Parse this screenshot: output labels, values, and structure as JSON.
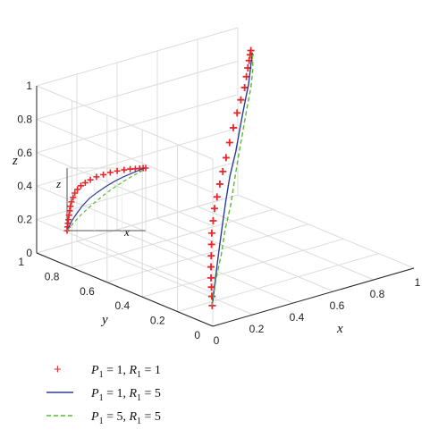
{
  "chart_data": {
    "type": "line3d",
    "title": "",
    "xlabel": "x",
    "ylabel": "y",
    "zlabel": "z",
    "xlim": [
      0,
      1
    ],
    "ylim": [
      0,
      1
    ],
    "zlim": [
      0,
      1
    ],
    "x_ticks": [
      "0",
      "0.2",
      "0.4",
      "0.6",
      "0.8",
      "1"
    ],
    "y_ticks": [
      "0",
      "0.2",
      "0.4",
      "0.6",
      "0.8",
      "1"
    ],
    "z_ticks": [
      "0",
      "0.2",
      "0.4",
      "0.6",
      "0.8",
      "1"
    ],
    "grid": true,
    "legend_position": "bottom-left",
    "inset": {
      "xlabel": "x",
      "zlabel": "z"
    },
    "series": [
      {
        "legend": "P1 = 1, R1 = 1",
        "legend_parts": {
          "p": "P",
          "p_sub": "1",
          "p_val": " = 1, ",
          "r": "R",
          "r_sub": "1",
          "r_val": " = 1"
        },
        "style": "plus-markers",
        "color": "#e8262b",
        "points": [
          [
            0.05,
            0.06,
            0.08
          ],
          [
            0.055,
            0.068,
            0.13
          ],
          [
            0.06,
            0.076,
            0.18
          ],
          [
            0.065,
            0.084,
            0.23
          ],
          [
            0.072,
            0.092,
            0.29
          ],
          [
            0.08,
            0.1,
            0.35
          ],
          [
            0.09,
            0.11,
            0.41
          ],
          [
            0.1,
            0.12,
            0.47
          ],
          [
            0.12,
            0.135,
            0.53
          ],
          [
            0.14,
            0.15,
            0.59
          ],
          [
            0.17,
            0.17,
            0.64
          ],
          [
            0.21,
            0.2,
            0.69
          ],
          [
            0.26,
            0.24,
            0.73
          ],
          [
            0.32,
            0.29,
            0.77
          ],
          [
            0.39,
            0.35,
            0.81
          ],
          [
            0.47,
            0.42,
            0.84
          ],
          [
            0.55,
            0.49,
            0.87
          ],
          [
            0.63,
            0.56,
            0.89
          ],
          [
            0.71,
            0.63,
            0.905
          ],
          [
            0.78,
            0.7,
            0.915
          ],
          [
            0.84,
            0.76,
            0.92
          ],
          [
            0.89,
            0.81,
            0.925
          ],
          [
            0.93,
            0.85,
            0.928
          ],
          [
            0.96,
            0.88,
            0.93
          ]
        ]
      },
      {
        "legend": "P1 = 1, R1 = 5",
        "legend_parts": {
          "p": "P",
          "p_sub": "1",
          "p_val": " = 1, ",
          "r": "R",
          "r_sub": "1",
          "r_val": " = 5"
        },
        "style": "solid",
        "color": "#2b3b9a",
        "points": [
          [
            0.05,
            0.06,
            0.08
          ],
          [
            0.1,
            0.1,
            0.2
          ],
          [
            0.16,
            0.15,
            0.31
          ],
          [
            0.23,
            0.21,
            0.42
          ],
          [
            0.31,
            0.28,
            0.52
          ],
          [
            0.4,
            0.36,
            0.6
          ],
          [
            0.5,
            0.44,
            0.68
          ],
          [
            0.6,
            0.53,
            0.75
          ],
          [
            0.7,
            0.62,
            0.81
          ],
          [
            0.8,
            0.71,
            0.86
          ],
          [
            0.88,
            0.79,
            0.9
          ],
          [
            0.95,
            0.86,
            0.93
          ]
        ]
      },
      {
        "legend": "P1 = 5, R1 = 5",
        "legend_parts": {
          "p": "P",
          "p_sub": "1",
          "p_val": " = 5, ",
          "r": "R",
          "r_sub": "1",
          "r_val": " = 5"
        },
        "style": "dashed",
        "color": "#5cb83a",
        "points": [
          [
            0.05,
            0.06,
            0.08
          ],
          [
            0.12,
            0.12,
            0.18
          ],
          [
            0.2,
            0.18,
            0.28
          ],
          [
            0.28,
            0.25,
            0.37
          ],
          [
            0.37,
            0.32,
            0.46
          ],
          [
            0.46,
            0.4,
            0.55
          ],
          [
            0.55,
            0.48,
            0.63
          ],
          [
            0.64,
            0.56,
            0.7
          ],
          [
            0.73,
            0.64,
            0.77
          ],
          [
            0.82,
            0.72,
            0.83
          ],
          [
            0.9,
            0.8,
            0.88
          ],
          [
            0.95,
            0.86,
            0.93
          ]
        ]
      }
    ]
  }
}
